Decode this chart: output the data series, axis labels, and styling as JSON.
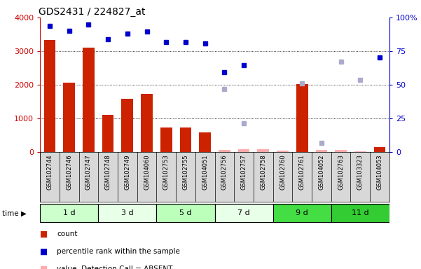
{
  "title": "GDS2431 / 224827_at",
  "samples": [
    "GSM102744",
    "GSM102746",
    "GSM102747",
    "GSM102748",
    "GSM102749",
    "GSM104060",
    "GSM102753",
    "GSM102755",
    "GSM104051",
    "GSM102756",
    "GSM102757",
    "GSM102758",
    "GSM102760",
    "GSM102761",
    "GSM104052",
    "GSM102763",
    "GSM103323",
    "GSM104053"
  ],
  "time_groups": [
    {
      "label": "1 d",
      "start": 0,
      "end": 3,
      "color": "#ccffcc"
    },
    {
      "label": "3 d",
      "start": 3,
      "end": 6,
      "color": "#e8ffe8"
    },
    {
      "label": "5 d",
      "start": 6,
      "end": 9,
      "color": "#bbffbb"
    },
    {
      "label": "7 d",
      "start": 9,
      "end": 12,
      "color": "#e8ffe8"
    },
    {
      "label": "9 d",
      "start": 12,
      "end": 15,
      "color": "#44dd44"
    },
    {
      "label": "11 d",
      "start": 15,
      "end": 18,
      "color": "#33cc33"
    }
  ],
  "count_values": [
    3330,
    2060,
    3100,
    1100,
    1590,
    1720,
    730,
    720,
    580,
    60,
    75,
    80,
    35,
    2030,
    55,
    55,
    30,
    140
  ],
  "count_absent": [
    false,
    false,
    false,
    false,
    false,
    false,
    false,
    false,
    false,
    true,
    true,
    true,
    true,
    false,
    true,
    true,
    true,
    false
  ],
  "percentile_values": [
    93.8,
    90.0,
    95.0,
    84.0,
    88.0,
    89.5,
    81.8,
    82.0,
    80.5,
    59.3,
    64.8,
    null,
    null,
    null,
    null,
    null,
    null,
    70.5
  ],
  "rank_absent_values": [
    null,
    null,
    null,
    null,
    null,
    null,
    null,
    null,
    null,
    47.0,
    21.3,
    null,
    null,
    51.0,
    6.8,
    67.0,
    53.5,
    null
  ],
  "ylim_left": [
    0,
    4000
  ],
  "ylim_right": [
    0,
    100
  ],
  "yticks_left": [
    0,
    1000,
    2000,
    3000,
    4000
  ],
  "yticks_right": [
    0,
    25,
    50,
    75,
    100
  ],
  "grid_values": [
    1000,
    2000,
    3000
  ],
  "left_axis_color": "#cc0000",
  "right_axis_color": "#0000cc",
  "bar_color_present": "#cc2200",
  "bar_color_absent": "#ffaaaa",
  "dot_color_present": "#0000cc",
  "dot_color_absent": "#aaaacc",
  "bg_color": "#ffffff",
  "plot_bg_color": "#ffffff"
}
